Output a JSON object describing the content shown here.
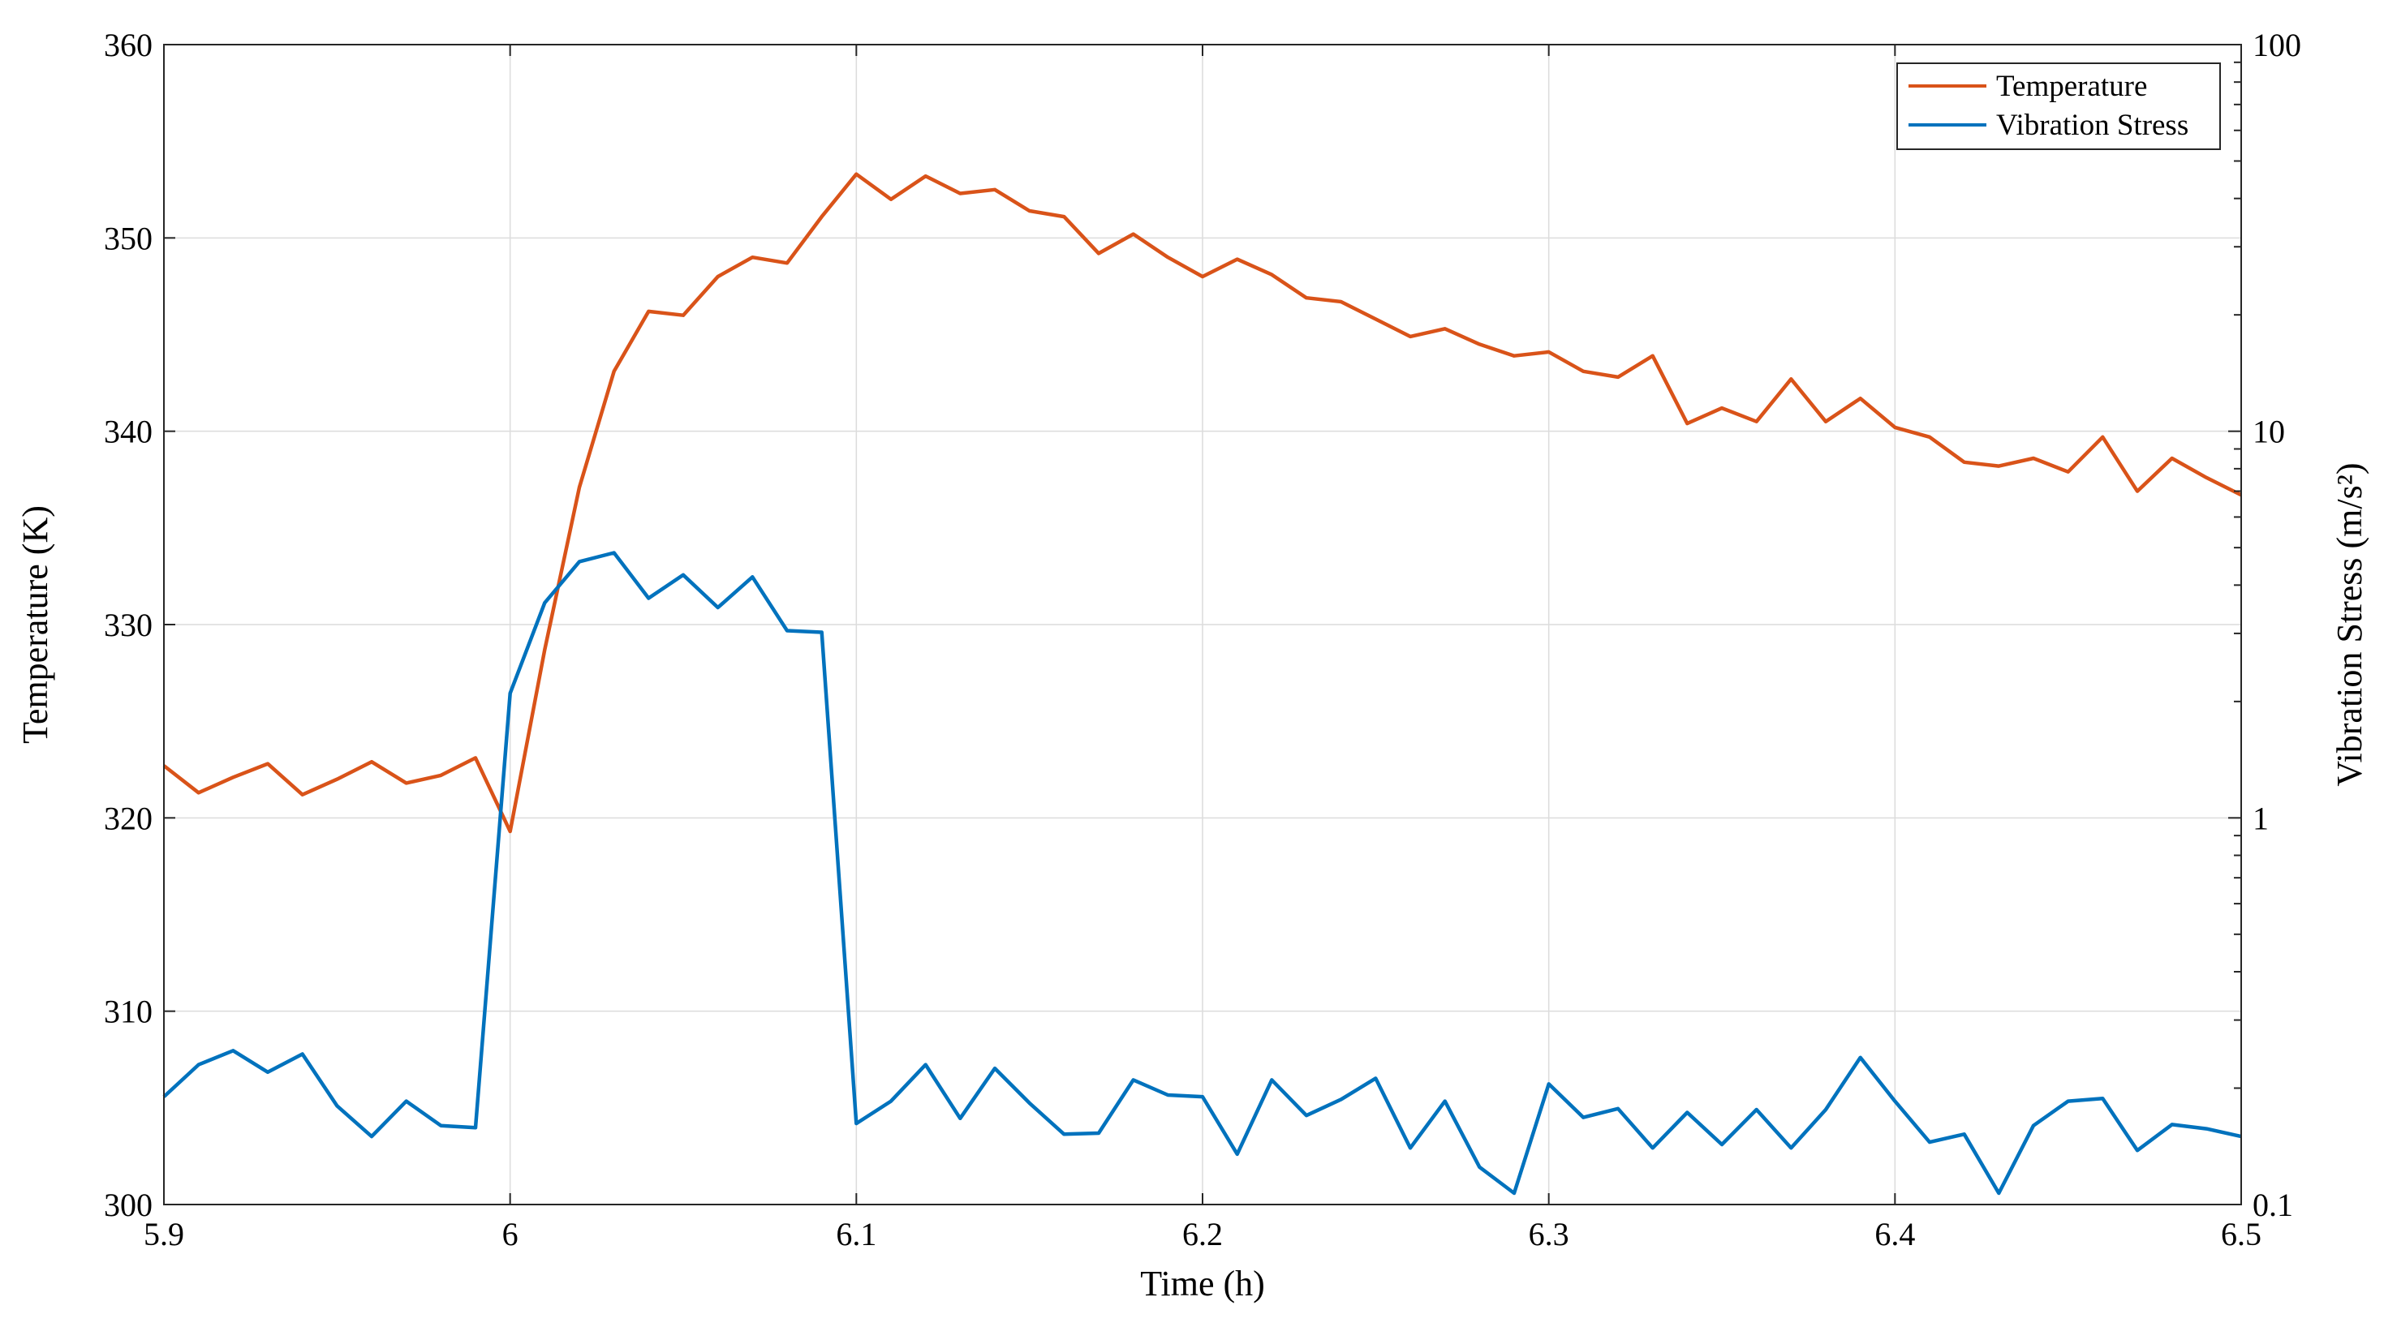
{
  "chart_data": {
    "type": "line",
    "dual_axis": true,
    "title": "",
    "xlabel": "Time (h)",
    "ylabel_left": "Temperature (K)",
    "ylabel_right": "Vibration Stress (m/s²)",
    "xlim": [
      5.9,
      6.5
    ],
    "ylim_left": [
      300,
      360
    ],
    "ylim_right": [
      0.1,
      100
    ],
    "right_scale": "log",
    "grid": true,
    "legend_position": "top-right",
    "x_ticks": [
      "5.9",
      "6",
      "6.1",
      "6.2",
      "6.3",
      "6.4",
      "6.5"
    ],
    "y_left_ticks": [
      "300",
      "310",
      "320",
      "330",
      "340",
      "350",
      "360"
    ],
    "y_right_ticks": [
      "0.1",
      "1",
      "10",
      "100"
    ],
    "x": [
      5.9,
      5.91,
      5.92,
      5.93,
      5.94,
      5.95,
      5.96,
      5.97,
      5.98,
      5.99,
      6.0,
      6.01,
      6.02,
      6.03,
      6.04,
      6.05,
      6.06,
      6.07,
      6.08,
      6.09,
      6.1,
      6.11,
      6.12,
      6.13,
      6.14,
      6.15,
      6.16,
      6.17,
      6.18,
      6.19,
      6.2,
      6.21,
      6.22,
      6.23,
      6.24,
      6.25,
      6.26,
      6.27,
      6.28,
      6.29,
      6.3,
      6.31,
      6.32,
      6.33,
      6.34,
      6.35,
      6.36,
      6.37,
      6.38,
      6.39,
      6.4,
      6.41,
      6.42,
      6.43,
      6.44,
      6.45,
      6.46,
      6.47,
      6.48,
      6.49,
      6.5
    ],
    "series": [
      {
        "name": "Temperature",
        "axis": "left",
        "color": "#D95319",
        "values": [
          322.7,
          321.3,
          322.1,
          322.8,
          321.2,
          322.0,
          322.9,
          321.8,
          322.2,
          323.1,
          319.3,
          328.7,
          337.1,
          343.1,
          346.2,
          346.0,
          348.0,
          349.0,
          348.7,
          351.1,
          353.3,
          352.0,
          353.2,
          352.3,
          352.5,
          351.4,
          351.1,
          349.2,
          350.2,
          349.0,
          348.0,
          348.9,
          348.1,
          346.9,
          346.7,
          345.8,
          344.9,
          345.3,
          344.5,
          343.9,
          344.1,
          343.1,
          342.8,
          343.9,
          340.4,
          341.2,
          340.5,
          342.7,
          340.5,
          341.7,
          340.2,
          339.7,
          338.4,
          338.2,
          338.6,
          337.9,
          339.7,
          336.9,
          338.6,
          337.6,
          336.7
        ]
      },
      {
        "name": "Vibration Stress",
        "axis": "right",
        "color": "#0072BD",
        "values": [
          0.19,
          0.23,
          0.25,
          0.22,
          0.245,
          0.18,
          0.15,
          0.185,
          0.16,
          0.158,
          2.1,
          3.6,
          4.6,
          4.85,
          3.7,
          4.25,
          3.5,
          4.2,
          3.05,
          3.02,
          0.162,
          0.185,
          0.23,
          0.167,
          0.225,
          0.183,
          0.152,
          0.153,
          0.21,
          0.192,
          0.19,
          0.135,
          0.21,
          0.17,
          0.187,
          0.212,
          0.14,
          0.185,
          0.125,
          0.107,
          0.205,
          0.168,
          0.177,
          0.14,
          0.173,
          0.143,
          0.176,
          0.14,
          0.176,
          0.24,
          0.185,
          0.145,
          0.152,
          0.107,
          0.16,
          0.185,
          0.188,
          0.138,
          0.161,
          0.157,
          0.15
        ]
      }
    ]
  }
}
